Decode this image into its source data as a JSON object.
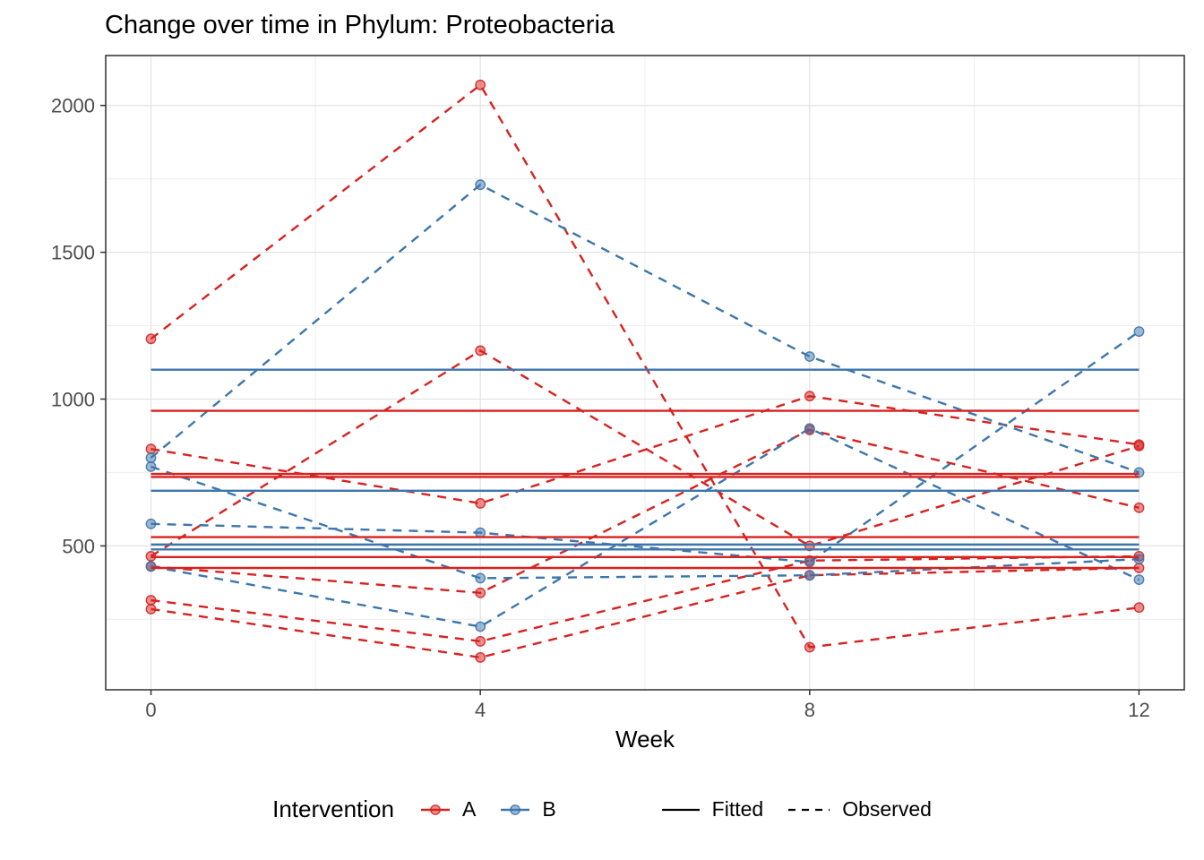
{
  "title": "Change over time in Phylum: Proteobacteria",
  "colors": {
    "A": "#D7221F",
    "B": "#3C76AD",
    "linetype_key": "#000000",
    "grid_major": "#E3E3E3",
    "grid_minor": "#F0F0F0",
    "panel_border": "#2F2F2F",
    "tick_text": "#4D4D4D"
  },
  "legend": {
    "title": "Intervention",
    "color_items": [
      {
        "label": "A",
        "color": "#D7221F"
      },
      {
        "label": "B",
        "color": "#3C76AD"
      }
    ],
    "linetype_items": [
      {
        "label": "Fitted",
        "style": "solid"
      },
      {
        "label": "Observed",
        "style": "dashed"
      }
    ]
  },
  "chart_data": {
    "type": "line",
    "title": "Change over time in Phylum: Proteobacteria",
    "xlabel": "Week",
    "ylabel": "",
    "weeks": [
      0,
      4,
      8,
      12
    ],
    "x_ticks": [
      0,
      4,
      8,
      12
    ],
    "x_minor": [
      2,
      6,
      10
    ],
    "y_ticks": [
      500,
      1000,
      1500,
      2000
    ],
    "y_minor": [
      250,
      750,
      1250,
      1750
    ],
    "x_range": [
      -0.55,
      12.55
    ],
    "y_range": [
      10,
      2170
    ],
    "grid": true,
    "legend_position": "bottom",
    "line_styles": {
      "fitted": "solid",
      "observed": "dashed"
    },
    "series": [
      {
        "group": "A",
        "fitted": 960,
        "observed": [
          1205,
          2070,
          155,
          290
        ]
      },
      {
        "group": "A",
        "fitted": 745,
        "observed": [
          830,
          645,
          1010,
          845
        ]
      },
      {
        "group": "A",
        "fitted": 735,
        "observed": [
          465,
          1165,
          500,
          840
        ]
      },
      {
        "group": "A",
        "fitted": 530,
        "observed": [
          430,
          340,
          895,
          630
        ]
      },
      {
        "group": "A",
        "fitted": 462,
        "observed": [
          315,
          175,
          450,
          465
        ]
      },
      {
        "group": "A",
        "fitted": 425,
        "observed": [
          285,
          120,
          400,
          425
        ]
      },
      {
        "group": "B",
        "fitted": 1100,
        "observed": [
          800,
          1730,
          1145,
          750
        ]
      },
      {
        "group": "B",
        "fitted": 688,
        "observed": [
          575,
          545,
          445,
          1230
        ]
      },
      {
        "group": "B",
        "fitted": 505,
        "observed": [
          770,
          390,
          400,
          455
        ]
      },
      {
        "group": "B",
        "fitted": 488,
        "observed": [
          430,
          225,
          900,
          385
        ]
      }
    ]
  }
}
